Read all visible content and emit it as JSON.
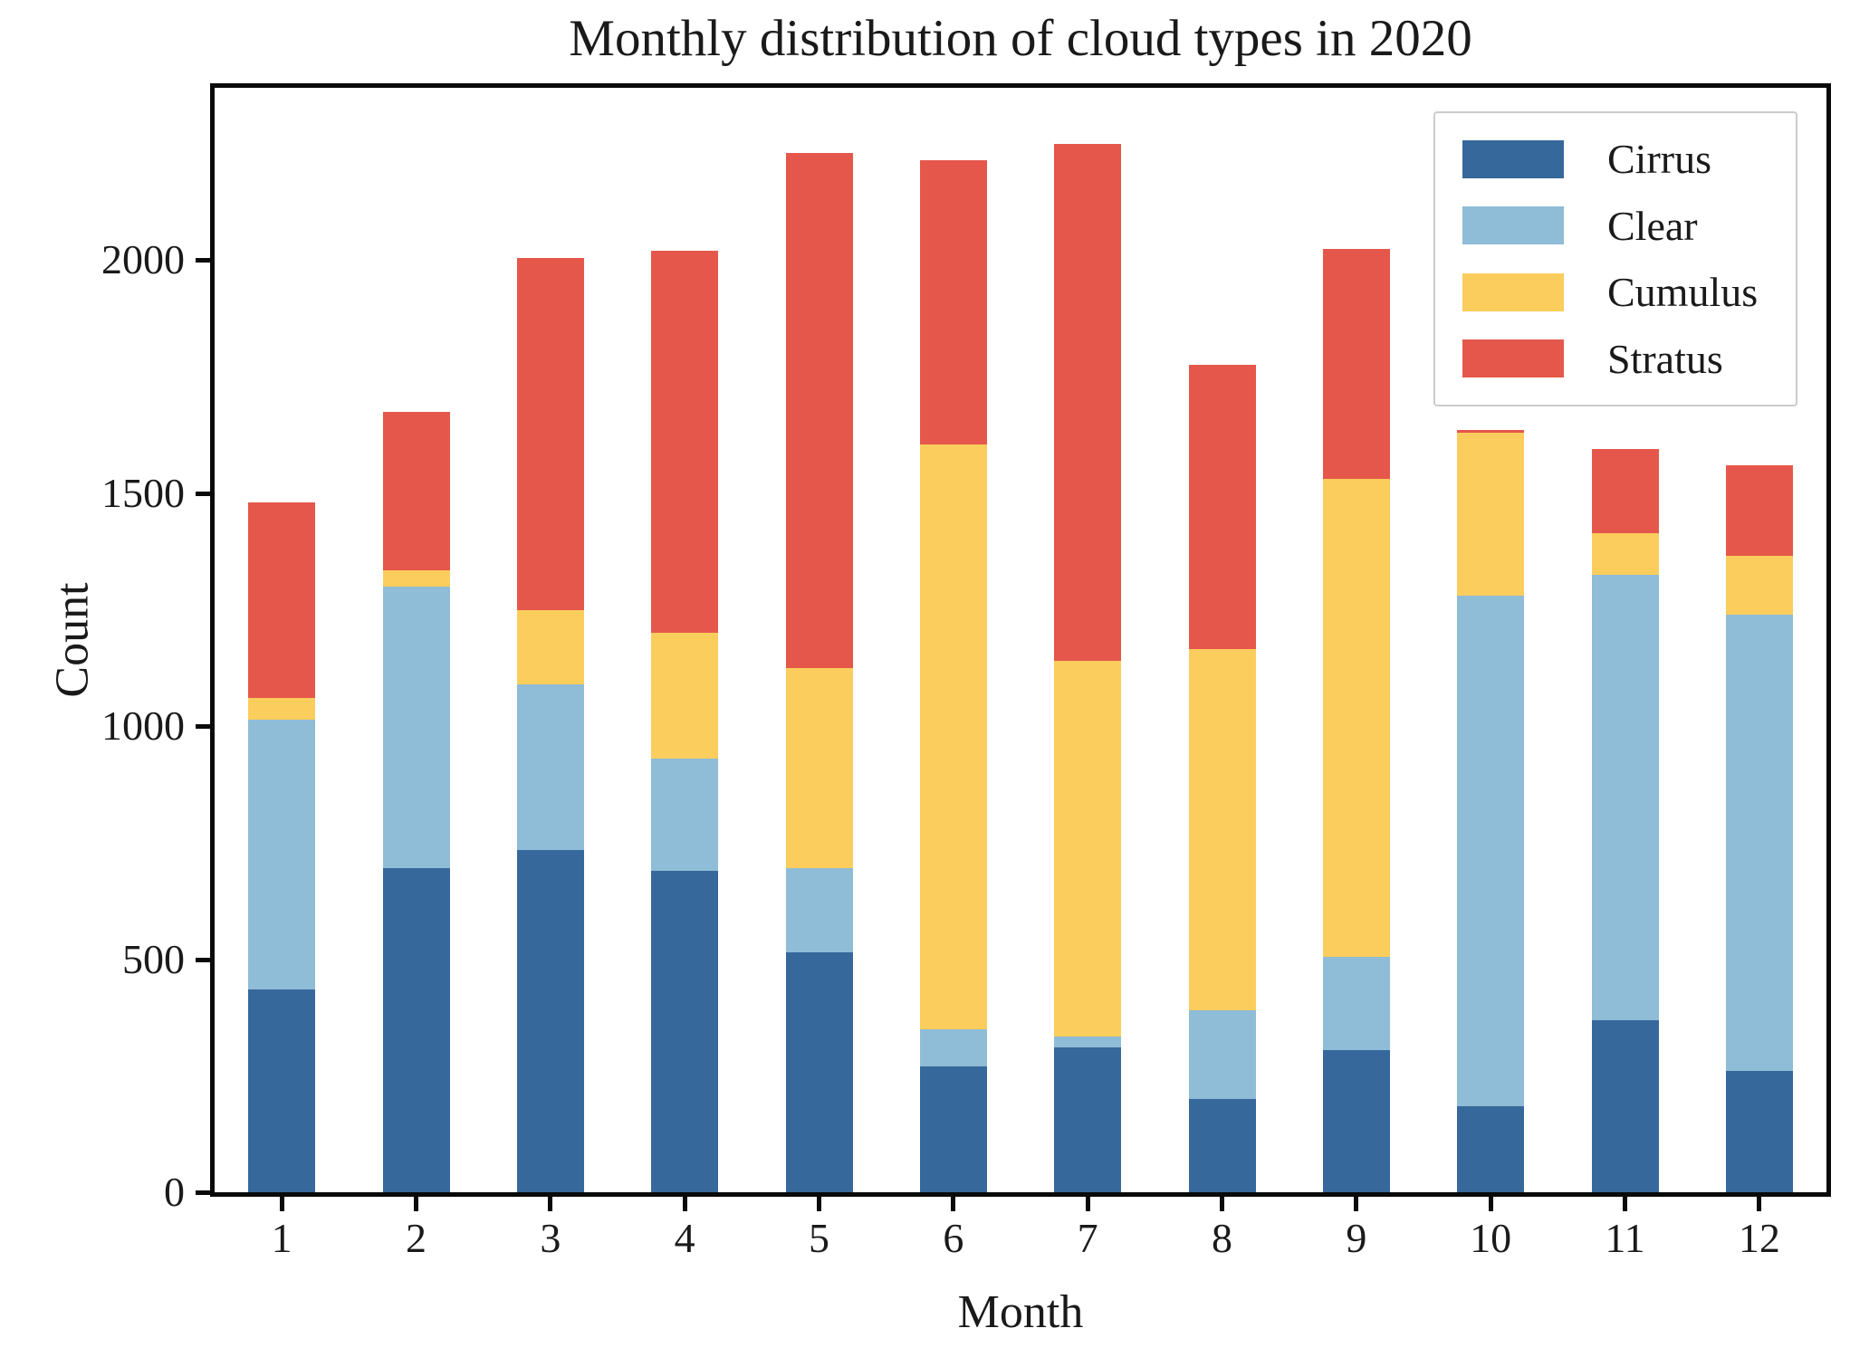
{
  "chart_data": {
    "type": "bar",
    "stacked": true,
    "title": "Monthly distribution of cloud types in 2020",
    "xlabel": "Month",
    "ylabel": "Count",
    "categories": [
      "1",
      "2",
      "3",
      "4",
      "5",
      "6",
      "7",
      "8",
      "9",
      "10",
      "11",
      "12"
    ],
    "series": [
      {
        "name": "Cirrus",
        "color": "#36689b",
        "values": [
          435,
          695,
          735,
          690,
          515,
          270,
          310,
          200,
          305,
          185,
          370,
          260
        ]
      },
      {
        "name": "Clear",
        "color": "#8fbcd6",
        "values": [
          580,
          605,
          355,
          240,
          180,
          80,
          25,
          190,
          200,
          1095,
          955,
          980
        ]
      },
      {
        "name": "Cumulus",
        "color": "#fbcd5d",
        "values": [
          45,
          35,
          160,
          270,
          430,
          1255,
          805,
          775,
          1025,
          350,
          90,
          125
        ]
      },
      {
        "name": "Stratus",
        "color": "#e5574b",
        "values": [
          420,
          340,
          755,
          820,
          1105,
          610,
          1110,
          610,
          495,
          5,
          180,
          195
        ]
      }
    ],
    "totals": [
      1480,
      1675,
      2005,
      2020,
      2230,
      2215,
      2250,
      1775,
      2025,
      1635,
      1595,
      1560
    ],
    "ylim": [
      0,
      2370
    ],
    "yticks": [
      "0",
      "500",
      "1000",
      "1500",
      "2000"
    ],
    "xticks": [
      "1",
      "2",
      "3",
      "4",
      "5",
      "6",
      "7",
      "8",
      "9",
      "10",
      "11",
      "12"
    ],
    "legend_position": "upper right",
    "legend_entries": [
      "Cirrus",
      "Clear",
      "Cumulus",
      "Stratus"
    ],
    "grid": false,
    "axis_color": "#0a0a0a",
    "background_color": "#ffffff"
  }
}
